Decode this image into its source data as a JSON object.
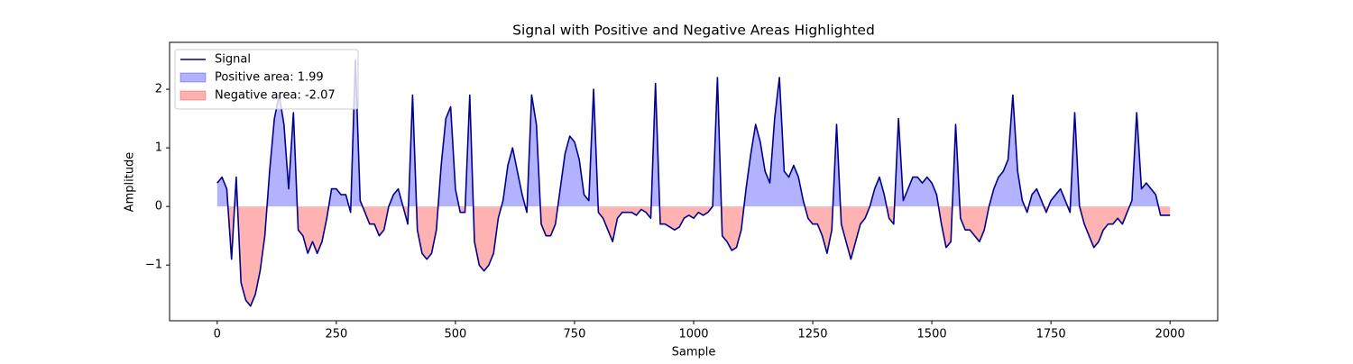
{
  "chart_data": {
    "type": "line",
    "title": "Signal with Positive and Negative Areas Highlighted",
    "xlabel": "Sample",
    "ylabel": "Amplitude",
    "x": [
      0,
      10,
      20,
      30,
      40,
      50,
      60,
      70,
      80,
      90,
      100,
      110,
      120,
      130,
      140,
      150,
      160,
      170,
      180,
      190,
      200,
      210,
      220,
      230,
      240,
      250,
      260,
      270,
      280,
      290,
      300,
      310,
      320,
      330,
      340,
      350,
      360,
      370,
      380,
      390,
      400,
      410,
      420,
      430,
      440,
      450,
      460,
      470,
      480,
      490,
      500,
      510,
      520,
      530,
      540,
      550,
      560,
      570,
      580,
      590,
      600,
      610,
      620,
      630,
      640,
      650,
      660,
      670,
      680,
      690,
      700,
      710,
      720,
      730,
      740,
      750,
      760,
      770,
      780,
      790,
      800,
      810,
      820,
      830,
      840,
      850,
      860,
      870,
      880,
      890,
      900,
      910,
      920,
      930,
      940,
      950,
      960,
      970,
      980,
      990,
      1000,
      1010,
      1020,
      1030,
      1040,
      1050,
      1060,
      1070,
      1080,
      1090,
      1100,
      1110,
      1120,
      1130,
      1140,
      1150,
      1160,
      1170,
      1180,
      1190,
      1200,
      1210,
      1220,
      1230,
      1240,
      1250,
      1260,
      1270,
      1280,
      1290,
      1300,
      1310,
      1320,
      1330,
      1340,
      1350,
      1360,
      1370,
      1380,
      1390,
      1400,
      1410,
      1420,
      1430,
      1440,
      1450,
      1460,
      1470,
      1480,
      1490,
      1500,
      1510,
      1520,
      1530,
      1540,
      1550,
      1560,
      1570,
      1580,
      1590,
      1600,
      1610,
      1620,
      1630,
      1640,
      1650,
      1660,
      1670,
      1680,
      1690,
      1700,
      1710,
      1720,
      1730,
      1740,
      1750,
      1760,
      1770,
      1780,
      1790,
      1800,
      1810,
      1820,
      1830,
      1840,
      1850,
      1860,
      1870,
      1880,
      1890,
      1900,
      1910,
      1920,
      1930,
      1940,
      1950,
      1960,
      1970,
      1980,
      1990,
      2000
    ],
    "series": [
      {
        "name": "Signal",
        "color": "#00008b",
        "values": [
          0.4,
          0.5,
          0.3,
          -0.9,
          0.5,
          -1.3,
          -1.6,
          -1.7,
          -1.5,
          -1.1,
          -0.5,
          0.6,
          1.5,
          1.9,
          1.4,
          0.3,
          1.6,
          -0.4,
          -0.5,
          -0.8,
          -0.6,
          -0.8,
          -0.6,
          -0.2,
          0.3,
          0.3,
          0.2,
          0.2,
          -0.1,
          2.5,
          0.1,
          -0.1,
          -0.3,
          -0.3,
          -0.5,
          -0.4,
          0.0,
          0.2,
          0.3,
          0.0,
          -0.3,
          1.9,
          -0.4,
          -0.8,
          -0.9,
          -0.8,
          -0.4,
          0.7,
          1.5,
          1.7,
          0.3,
          -0.1,
          -0.1,
          1.9,
          -0.6,
          -1.0,
          -1.1,
          -1.0,
          -0.8,
          -0.2,
          0.1,
          0.7,
          1.0,
          0.6,
          0.2,
          -0.1,
          1.9,
          1.4,
          -0.3,
          -0.5,
          -0.5,
          -0.3,
          0.3,
          0.9,
          1.2,
          1.1,
          0.8,
          0.2,
          0.1,
          2.0,
          -0.1,
          -0.2,
          -0.4,
          -0.6,
          -0.2,
          -0.1,
          -0.1,
          -0.1,
          -0.15,
          -0.05,
          -0.1,
          -0.2,
          2.1,
          -0.3,
          -0.3,
          -0.35,
          -0.4,
          -0.35,
          -0.2,
          -0.15,
          -0.2,
          -0.1,
          -0.15,
          -0.1,
          0.0,
          2.2,
          -0.5,
          -0.6,
          -0.75,
          -0.7,
          -0.4,
          0.3,
          0.9,
          1.4,
          1.1,
          0.6,
          0.4,
          1.5,
          2.2,
          0.6,
          0.5,
          0.7,
          0.5,
          0.1,
          -0.2,
          -0.3,
          -0.3,
          -0.5,
          -0.8,
          -0.4,
          1.4,
          -0.3,
          -0.6,
          -0.9,
          -0.6,
          -0.3,
          -0.2,
          0.0,
          0.3,
          0.5,
          0.2,
          -0.2,
          -0.3,
          1.5,
          0.1,
          0.3,
          0.5,
          0.5,
          0.4,
          0.5,
          0.4,
          0.2,
          -0.3,
          -0.7,
          -0.6,
          1.4,
          -0.2,
          -0.4,
          -0.4,
          -0.5,
          -0.6,
          -0.4,
          0.0,
          0.3,
          0.5,
          0.6,
          0.8,
          1.9,
          0.6,
          0.1,
          -0.1,
          0.2,
          0.3,
          0.1,
          -0.1,
          0.1,
          0.2,
          0.3,
          0.1,
          -0.1,
          1.6,
          0.0,
          -0.3,
          -0.5,
          -0.7,
          -0.6,
          -0.4,
          -0.3,
          -0.3,
          -0.2,
          -0.3,
          -0.1,
          0.1,
          1.6,
          0.3,
          0.4,
          0.3,
          0.2,
          -0.15,
          -0.15,
          -0.15
        ]
      }
    ],
    "fills": [
      {
        "name": "Positive area: 1.99",
        "color": "#0000ff"
      },
      {
        "name": "Negative area: -2.07",
        "color": "#ff0000"
      }
    ],
    "xlim": [
      -100,
      2100
    ],
    "xticks": [
      0,
      250,
      500,
      750,
      1000,
      1250,
      1500,
      1750,
      2000
    ],
    "ylim": [
      -1.95,
      2.8
    ],
    "yticks": [
      {
        "value": -1,
        "label": "−1"
      },
      0,
      1,
      2
    ]
  }
}
